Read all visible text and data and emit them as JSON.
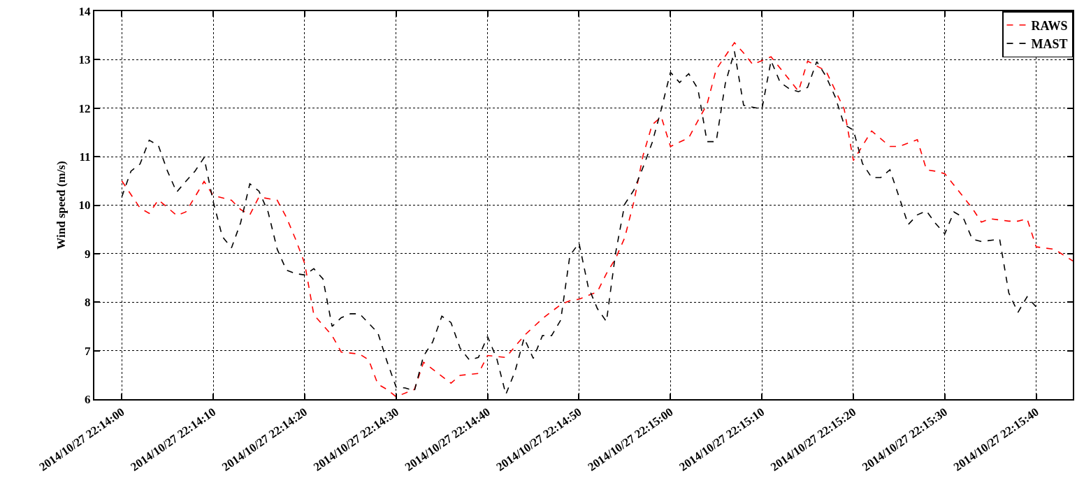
{
  "chart_data": {
    "type": "line",
    "ylabel": "Wind speed (m/s)",
    "xlim": [
      "2014-10-27T22:13:57",
      "2014-10-27T22:15:44"
    ],
    "xticks": [
      {
        "value": "2014-10-27T22:14:00",
        "label": "2014/10/27 22:14:00"
      },
      {
        "value": "2014-10-27T22:14:10",
        "label": "2014/10/27 22:14:10"
      },
      {
        "value": "2014-10-27T22:14:20",
        "label": "2014/10/27 22:14:20"
      },
      {
        "value": "2014-10-27T22:14:30",
        "label": "2014/10/27 22:14:30"
      },
      {
        "value": "2014-10-27T22:14:40",
        "label": "2014/10/27 22:14:40"
      },
      {
        "value": "2014-10-27T22:14:50",
        "label": "2014/10/27 22:14:50"
      },
      {
        "value": "2014-10-27T22:15:00",
        "label": "2014/10/27 22:15:00"
      },
      {
        "value": "2014-10-27T22:15:10",
        "label": "2014/10/27 22:15:10"
      },
      {
        "value": "2014-10-27T22:15:20",
        "label": "2014/10/27 22:15:20"
      },
      {
        "value": "2014-10-27T22:15:30",
        "label": "2014/10/27 22:15:30"
      },
      {
        "value": "2014-10-27T22:15:40",
        "label": "2014/10/27 22:15:40"
      }
    ],
    "ylim": [
      6,
      14
    ],
    "yticks": [
      6,
      7,
      8,
      9,
      10,
      11,
      12,
      13,
      14
    ],
    "grid": true,
    "legend": "top right",
    "line_style": "dashed",
    "marker": "none",
    "series": [
      {
        "name": "RAWS",
        "color": "#ff0000",
        "x": [
          "2014-10-27T22:14:00",
          "2014-10-27T22:14:02",
          "2014-10-27T22:14:03",
          "2014-10-27T22:14:04",
          "2014-10-27T22:14:06",
          "2014-10-27T22:14:07",
          "2014-10-27T22:14:08",
          "2014-10-27T22:14:09",
          "2014-10-27T22:14:10",
          "2014-10-27T22:14:12",
          "2014-10-27T22:14:13",
          "2014-10-27T22:14:14",
          "2014-10-27T22:14:15",
          "2014-10-27T22:14:17",
          "2014-10-27T22:14:18",
          "2014-10-27T22:14:19",
          "2014-10-27T22:14:20",
          "2014-10-27T22:14:21",
          "2014-10-27T22:14:23",
          "2014-10-27T22:14:24",
          "2014-10-27T22:14:26",
          "2014-10-27T22:14:27",
          "2014-10-27T22:14:28",
          "2014-10-27T22:14:29",
          "2014-10-27T22:14:30",
          "2014-10-27T22:14:32",
          "2014-10-27T22:14:33",
          "2014-10-27T22:14:36",
          "2014-10-27T22:14:37",
          "2014-10-27T22:14:39",
          "2014-10-27T22:14:40",
          "2014-10-27T22:14:42",
          "2014-10-27T22:14:44",
          "2014-10-27T22:14:46",
          "2014-10-27T22:14:48",
          "2014-10-27T22:14:49",
          "2014-10-27T22:14:50",
          "2014-10-27T22:14:51",
          "2014-10-27T22:14:52",
          "2014-10-27T22:14:53",
          "2014-10-27T22:14:54",
          "2014-10-27T22:14:55",
          "2014-10-27T22:14:56",
          "2014-10-27T22:14:57",
          "2014-10-27T22:14:58",
          "2014-10-27T22:14:59",
          "2014-10-27T22:15:00",
          "2014-10-27T22:15:02",
          "2014-10-27T22:15:03",
          "2014-10-27T22:15:04",
          "2014-10-27T22:15:05",
          "2014-10-27T22:15:07",
          "2014-10-27T22:15:08",
          "2014-10-27T22:15:09",
          "2014-10-27T22:15:10",
          "2014-10-27T22:15:11",
          "2014-10-27T22:15:14",
          "2014-10-27T22:15:15",
          "2014-10-27T22:15:17",
          "2014-10-27T22:15:19",
          "2014-10-27T22:15:20",
          "2014-10-27T22:15:22",
          "2014-10-27T22:15:24",
          "2014-10-27T22:15:25",
          "2014-10-27T22:15:27",
          "2014-10-27T22:15:28",
          "2014-10-27T22:15:29",
          "2014-10-27T22:15:30",
          "2014-10-27T22:15:33",
          "2014-10-27T22:15:34",
          "2014-10-27T22:15:35",
          "2014-10-27T22:15:37",
          "2014-10-27T22:15:38",
          "2014-10-27T22:15:39",
          "2014-10-27T22:15:40",
          "2014-10-27T22:15:42",
          "2014-10-27T22:15:44"
        ],
        "values": [
          10.5,
          9.94,
          9.83,
          10.11,
          9.79,
          9.86,
          10.17,
          10.49,
          10.2,
          10.1,
          9.91,
          9.8,
          10.17,
          10.1,
          9.75,
          9.3,
          8.8,
          7.74,
          7.31,
          6.97,
          6.93,
          6.81,
          6.31,
          6.2,
          6.05,
          6.2,
          6.76,
          6.33,
          6.49,
          6.53,
          6.9,
          6.86,
          7.31,
          7.66,
          7.95,
          8.03,
          8.06,
          8.14,
          8.21,
          8.59,
          8.9,
          9.33,
          10.07,
          11.02,
          11.66,
          11.82,
          11.21,
          11.39,
          11.74,
          12.08,
          12.8,
          13.35,
          13.14,
          12.9,
          12.98,
          13.06,
          12.35,
          12.97,
          12.77,
          11.98,
          10.92,
          11.53,
          11.21,
          11.21,
          11.35,
          10.73,
          10.7,
          10.65,
          9.94,
          9.65,
          9.72,
          9.67,
          9.67,
          9.72,
          9.14,
          9.09,
          8.85
        ]
      },
      {
        "name": "MAST",
        "color": "#000000",
        "x": [
          "2014-10-27T22:14:00",
          "2014-10-27T22:14:01",
          "2014-10-27T22:14:02",
          "2014-10-27T22:14:03",
          "2014-10-27T22:14:04",
          "2014-10-27T22:14:05",
          "2014-10-27T22:14:06",
          "2014-10-27T22:14:07",
          "2014-10-27T22:14:08",
          "2014-10-27T22:14:09",
          "2014-10-27T22:14:10",
          "2014-10-27T22:14:11",
          "2014-10-27T22:14:12",
          "2014-10-27T22:14:13",
          "2014-10-27T22:14:14",
          "2014-10-27T22:14:15",
          "2014-10-27T22:14:16",
          "2014-10-27T22:14:17",
          "2014-10-27T22:14:18",
          "2014-10-27T22:14:19",
          "2014-10-27T22:14:20",
          "2014-10-27T22:14:21",
          "2014-10-27T22:14:22",
          "2014-10-27T22:14:23",
          "2014-10-27T22:14:24",
          "2014-10-27T22:14:25",
          "2014-10-27T22:14:26",
          "2014-10-27T22:14:28",
          "2014-10-27T22:14:29",
          "2014-10-27T22:14:30",
          "2014-10-27T22:14:31",
          "2014-10-27T22:14:32",
          "2014-10-27T22:14:33",
          "2014-10-27T22:14:34",
          "2014-10-27T22:14:35",
          "2014-10-27T22:14:36",
          "2014-10-27T22:14:37",
          "2014-10-27T22:14:38",
          "2014-10-27T22:14:39",
          "2014-10-27T22:14:40",
          "2014-10-27T22:14:41",
          "2014-10-27T22:14:42",
          "2014-10-27T22:14:43",
          "2014-10-27T22:14:44",
          "2014-10-27T22:14:45",
          "2014-10-27T22:14:46",
          "2014-10-27T22:14:47",
          "2014-10-27T22:14:48",
          "2014-10-27T22:14:49",
          "2014-10-27T22:14:50",
          "2014-10-27T22:14:51",
          "2014-10-27T22:14:52",
          "2014-10-27T22:14:53",
          "2014-10-27T22:14:54",
          "2014-10-27T22:14:55",
          "2014-10-27T22:14:56",
          "2014-10-27T22:14:57",
          "2014-10-27T22:14:58",
          "2014-10-27T22:14:59",
          "2014-10-27T22:15:00",
          "2014-10-27T22:15:01",
          "2014-10-27T22:15:02",
          "2014-10-27T22:15:03",
          "2014-10-27T22:15:04",
          "2014-10-27T22:15:05",
          "2014-10-27T22:15:06",
          "2014-10-27T22:15:07",
          "2014-10-27T22:15:08",
          "2014-10-27T22:15:10",
          "2014-10-27T22:15:11",
          "2014-10-27T22:15:12",
          "2014-10-27T22:15:13",
          "2014-10-27T22:15:14",
          "2014-10-27T22:15:15",
          "2014-10-27T22:15:16",
          "2014-10-27T22:15:17",
          "2014-10-27T22:15:18",
          "2014-10-27T22:15:19",
          "2014-10-27T22:15:20",
          "2014-10-27T22:15:21",
          "2014-10-27T22:15:22",
          "2014-10-27T22:15:23",
          "2014-10-27T22:15:24",
          "2014-10-27T22:15:25",
          "2014-10-27T22:15:26",
          "2014-10-27T22:15:27",
          "2014-10-27T22:15:28",
          "2014-10-27T22:15:29",
          "2014-10-27T22:15:30",
          "2014-10-27T22:15:31",
          "2014-10-27T22:15:32",
          "2014-10-27T22:15:33",
          "2014-10-27T22:15:34",
          "2014-10-27T22:15:36",
          "2014-10-27T22:15:37",
          "2014-10-27T22:15:38",
          "2014-10-27T22:15:39",
          "2014-10-27T22:15:40"
        ],
        "values": [
          10.17,
          10.7,
          10.85,
          11.34,
          11.23,
          10.7,
          10.27,
          10.49,
          10.7,
          10.98,
          10.07,
          9.35,
          9.12,
          9.64,
          10.44,
          10.29,
          9.86,
          9.09,
          8.66,
          8.59,
          8.56,
          8.69,
          8.48,
          7.5,
          7.68,
          7.76,
          7.76,
          7.37,
          6.78,
          6.25,
          6.23,
          6.17,
          6.89,
          7.18,
          7.71,
          7.58,
          7.05,
          6.81,
          6.86,
          7.29,
          6.84,
          6.1,
          6.57,
          7.26,
          6.84,
          7.31,
          7.31,
          7.63,
          8.96,
          9.22,
          8.32,
          7.87,
          7.6,
          9.01,
          10.02,
          10.31,
          10.78,
          11.29,
          11.98,
          12.74,
          12.53,
          12.71,
          12.4,
          11.31,
          11.31,
          12.51,
          13.17,
          12.06,
          11.98,
          12.98,
          12.53,
          12.4,
          12.34,
          12.43,
          12.96,
          12.66,
          12.24,
          11.66,
          11.55,
          10.86,
          10.57,
          10.57,
          10.73,
          10.17,
          9.6,
          9.8,
          9.88,
          9.62,
          9.41,
          9.86,
          9.75,
          9.3,
          9.25,
          9.3,
          8.19,
          7.79,
          8.11,
          7.9
        ]
      }
    ]
  }
}
